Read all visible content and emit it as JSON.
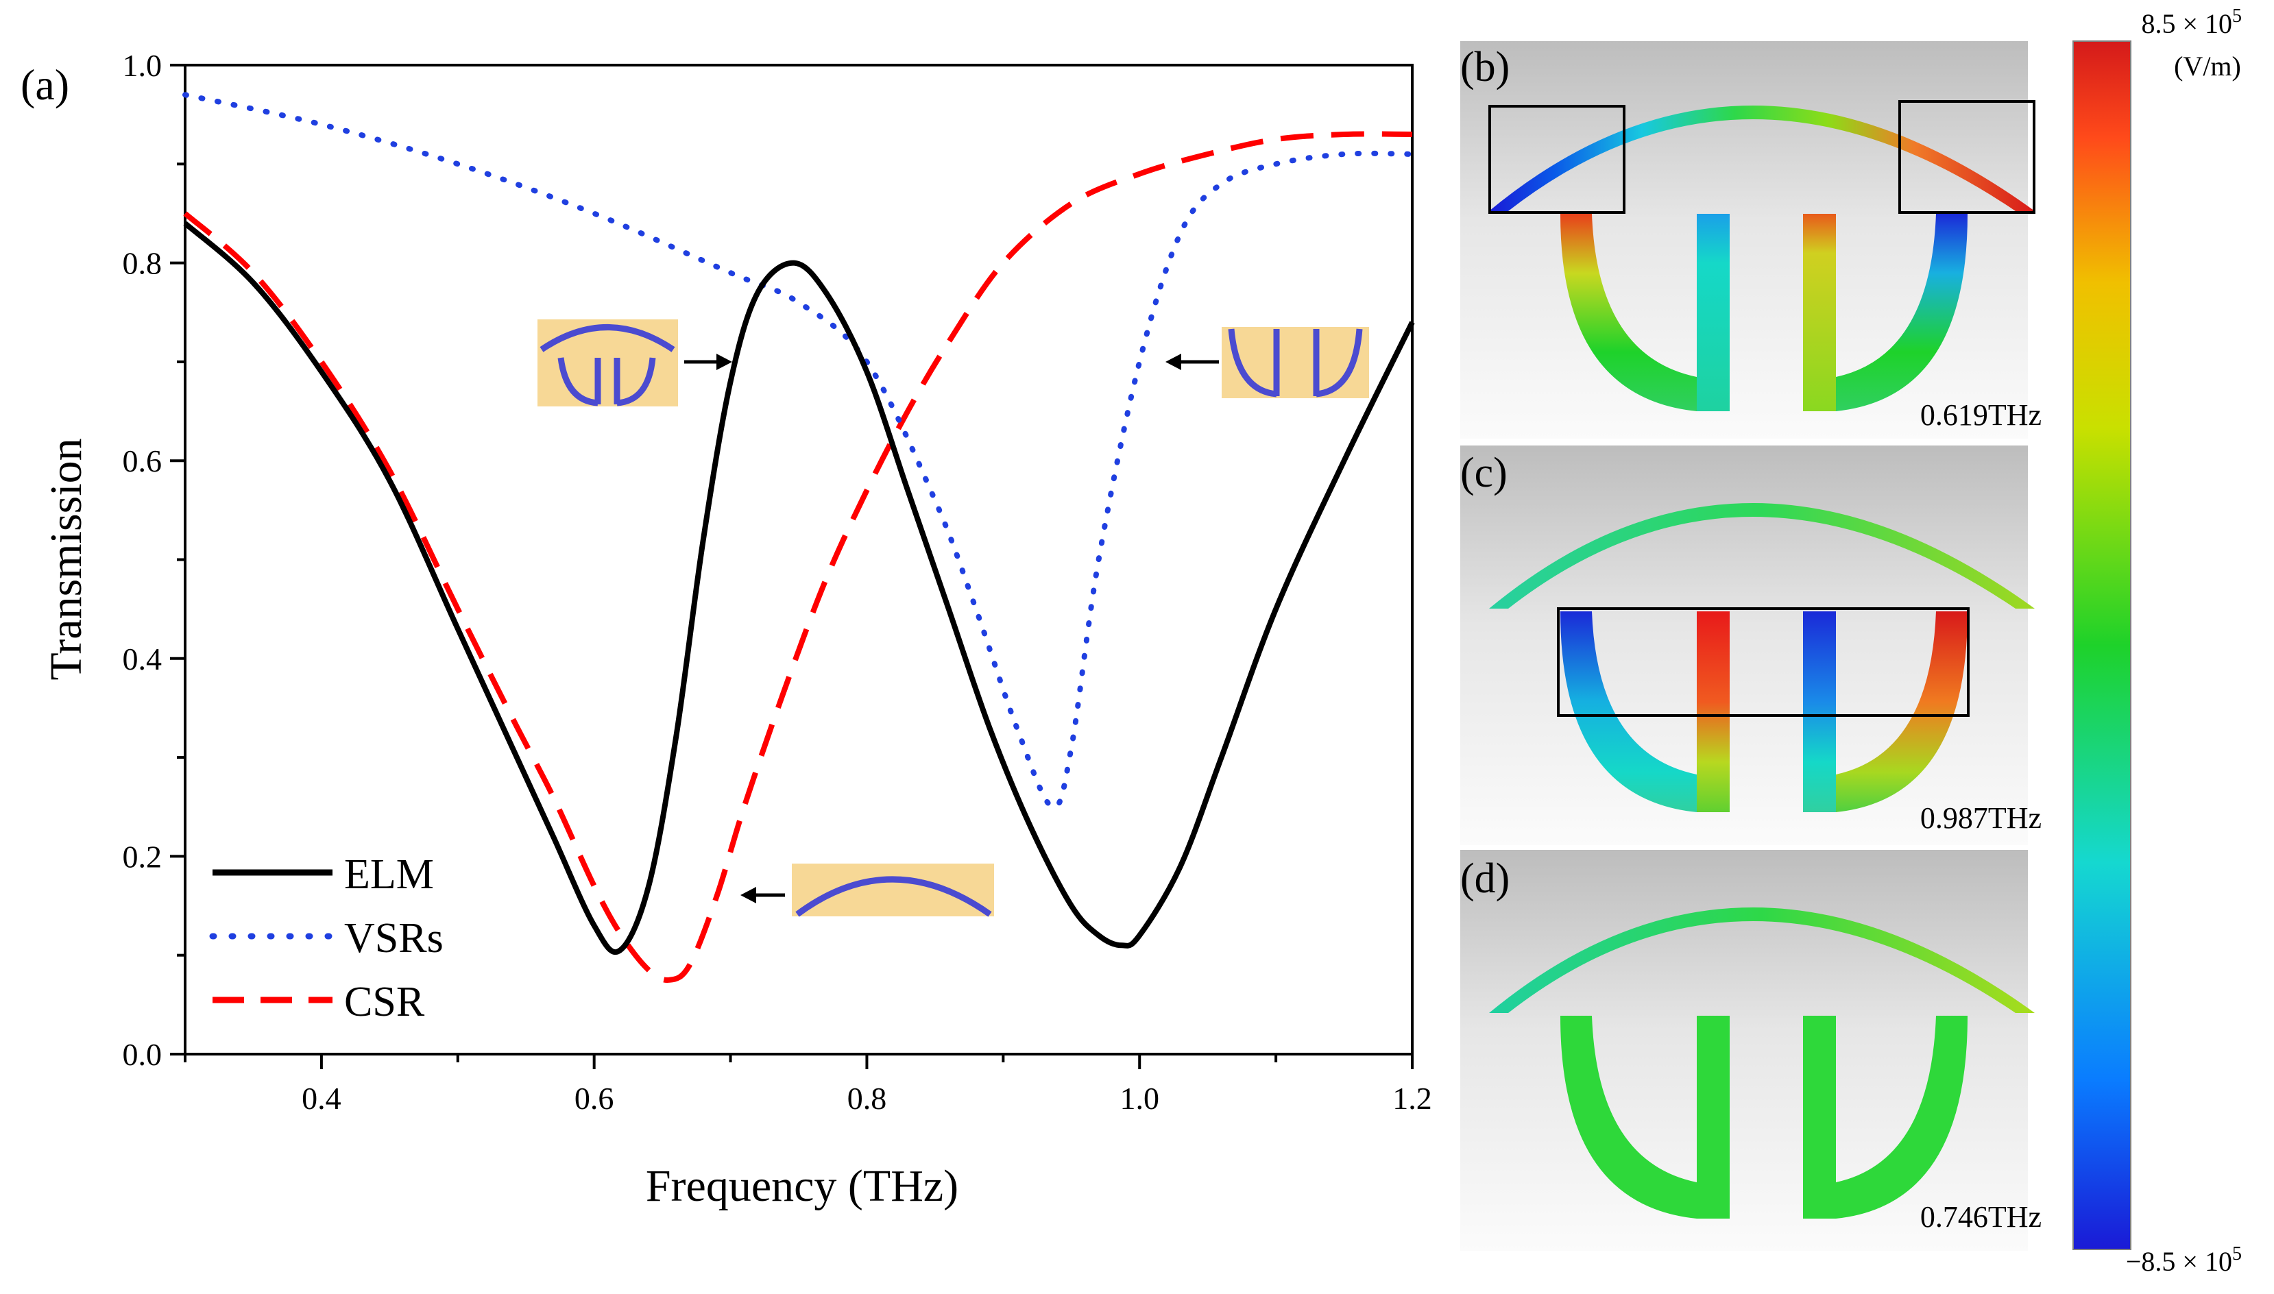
{
  "chart_data": {
    "type": "line",
    "panel_label": "(a)",
    "xlabel": "Frequency (THz)",
    "ylabel": "Transmission",
    "xlim": [
      0.3,
      1.2
    ],
    "ylim": [
      0.0,
      1.0
    ],
    "xticks": [
      0.4,
      0.6,
      0.8,
      1.0,
      1.2
    ],
    "xtick_labels": [
      "0.4",
      "0.6",
      "0.8",
      "1.0",
      "1.2"
    ],
    "yticks": [
      0.0,
      0.2,
      0.4,
      0.6,
      0.8,
      1.0
    ],
    "ytick_labels": [
      "0.0",
      "0.2",
      "0.4",
      "0.6",
      "0.8",
      "1.0"
    ],
    "legend_position": "bottom-left",
    "series": [
      {
        "name": "ELM",
        "style": "solid",
        "color": "#000000",
        "x": [
          0.3,
          0.35,
          0.4,
          0.45,
          0.5,
          0.54,
          0.57,
          0.6,
          0.619,
          0.64,
          0.66,
          0.68,
          0.7,
          0.72,
          0.746,
          0.77,
          0.8,
          0.83,
          0.86,
          0.89,
          0.92,
          0.95,
          0.97,
          0.987,
          1.0,
          1.03,
          1.06,
          1.1,
          1.15,
          1.2
        ],
        "y": [
          0.84,
          0.78,
          0.69,
          0.58,
          0.43,
          0.31,
          0.22,
          0.13,
          0.105,
          0.17,
          0.32,
          0.52,
          0.68,
          0.77,
          0.8,
          0.77,
          0.69,
          0.57,
          0.45,
          0.33,
          0.23,
          0.15,
          0.12,
          0.11,
          0.12,
          0.19,
          0.3,
          0.45,
          0.6,
          0.74
        ]
      },
      {
        "name": "VSRs",
        "style": "dotted",
        "color": "#1f3fe0",
        "x": [
          0.3,
          0.4,
          0.5,
          0.6,
          0.7,
          0.75,
          0.8,
          0.85,
          0.88,
          0.91,
          0.936,
          0.95,
          0.97,
          1.0,
          1.03,
          1.06,
          1.1,
          1.15,
          1.2
        ],
        "y": [
          0.97,
          0.94,
          0.9,
          0.85,
          0.79,
          0.76,
          0.7,
          0.56,
          0.45,
          0.33,
          0.25,
          0.31,
          0.5,
          0.7,
          0.83,
          0.88,
          0.9,
          0.91,
          0.91
        ]
      },
      {
        "name": "CSR",
        "style": "dashed",
        "color": "#ff0000",
        "x": [
          0.3,
          0.35,
          0.4,
          0.45,
          0.5,
          0.54,
          0.57,
          0.6,
          0.62,
          0.64,
          0.655,
          0.67,
          0.69,
          0.71,
          0.74,
          0.77,
          0.8,
          0.83,
          0.86,
          0.9,
          0.95,
          1.0,
          1.05,
          1.1,
          1.15,
          1.2
        ],
        "y": [
          0.85,
          0.79,
          0.7,
          0.59,
          0.45,
          0.34,
          0.26,
          0.17,
          0.12,
          0.085,
          0.075,
          0.09,
          0.16,
          0.25,
          0.37,
          0.48,
          0.57,
          0.65,
          0.72,
          0.8,
          0.86,
          0.89,
          0.91,
          0.925,
          0.93,
          0.93
        ]
      }
    ]
  },
  "field_panels": [
    {
      "label": "(b)",
      "frequency": "0.619THz"
    },
    {
      "label": "(c)",
      "frequency": "0.987THz"
    },
    {
      "label": "(d)",
      "frequency": "0.746THz"
    }
  ],
  "colorbar": {
    "max_label": "8.5 × 10",
    "min_label": "−8.5 × 10",
    "exponent": "5",
    "unit": "(V/m)",
    "stops": [
      "#1a1ad6",
      "#0a7cff",
      "#15d8d0",
      "#1ed22a",
      "#c9e000",
      "#f0c000",
      "#ff4a1a",
      "#d41a1a"
    ]
  },
  "colors": {
    "inset_bg": "#f7d896",
    "structure": "#4b4bd0",
    "panel_bg_top": "#bcbcbc",
    "panel_bg_bottom": "#fafafa"
  }
}
